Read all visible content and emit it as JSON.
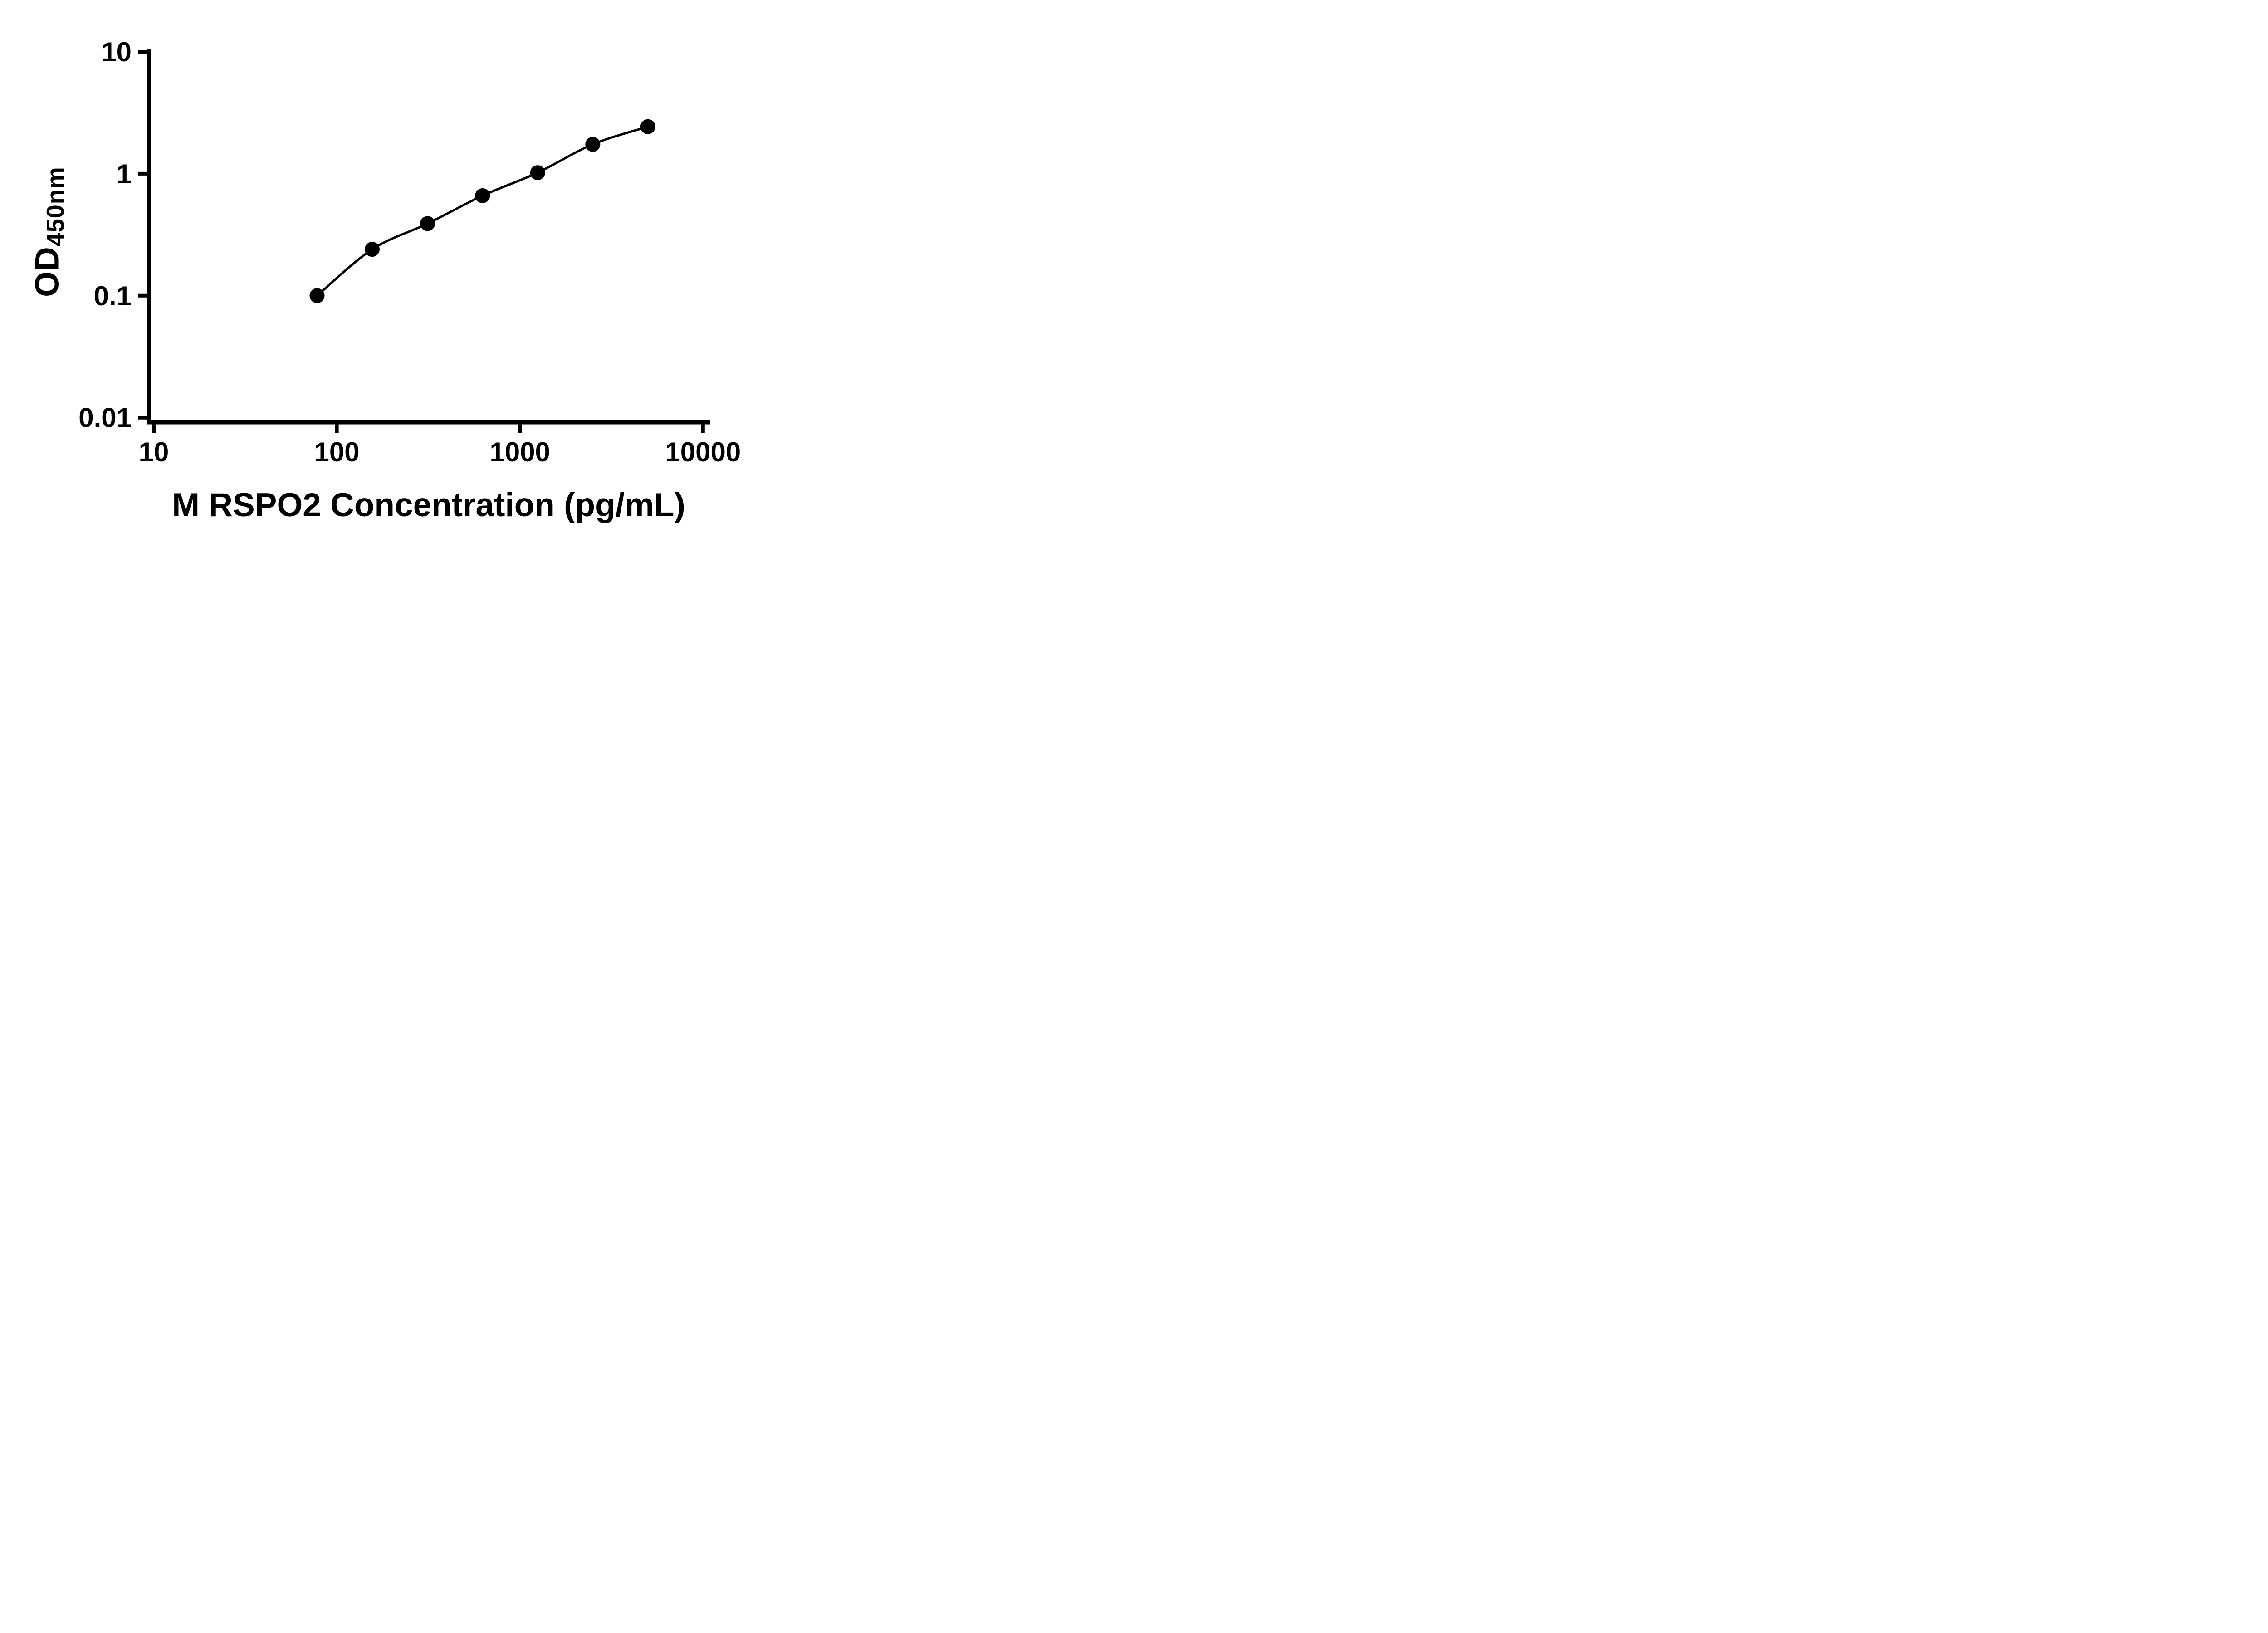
{
  "chart_data": {
    "type": "scatter",
    "xlabel": "M RSPO2 Concentration (pg/mL)",
    "ylabel_main": "OD",
    "ylabel_sub": "450nm",
    "x_scale": "log",
    "y_scale": "log",
    "xlim": [
      10,
      10000
    ],
    "ylim": [
      0.01,
      10
    ],
    "x_ticks": [
      10,
      100,
      1000,
      10000
    ],
    "x_tick_labels": [
      "10",
      "100",
      "1000",
      "10000"
    ],
    "y_ticks": [
      0.01,
      0.1,
      1,
      10
    ],
    "y_tick_labels": [
      "0.01",
      "0.1",
      "1",
      "10"
    ],
    "grid": false,
    "legend": false,
    "series": [
      {
        "x": [
          78,
          156,
          313,
          625,
          1250,
          2500,
          5000
        ],
        "y": [
          0.1,
          0.24,
          0.39,
          0.66,
          1.02,
          1.74,
          2.43
        ],
        "marker": "circle",
        "curve": "smooth"
      }
    ],
    "colors": {
      "axis": "#000000",
      "text": "#000000",
      "marker": "#000000",
      "line": "#000000",
      "background": "#ffffff"
    }
  }
}
